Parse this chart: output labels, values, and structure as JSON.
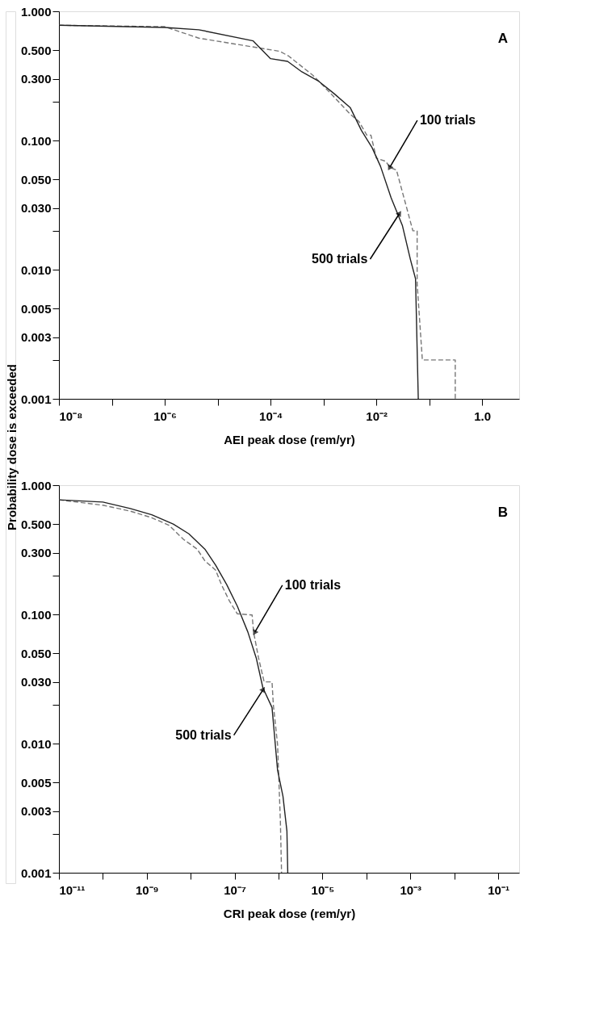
{
  "chart_data": [
    {
      "type": "line",
      "xlabel": "AEI peak dose (rem/yr)",
      "ylabel": "Probability dose is exceeded",
      "log": "xy",
      "marker": "none",
      "xlim": [
        1e-08,
        5
      ],
      "ylim": [
        0.001,
        1
      ],
      "xticks": [
        {
          "value": 1e-08,
          "label": "10⁻⁸"
        },
        {
          "value": 1e-07,
          "label": null
        },
        {
          "value": 1e-06,
          "label": "10⁻⁶"
        },
        {
          "value": 1e-05,
          "label": null
        },
        {
          "value": 0.0001,
          "label": "10⁻⁴"
        },
        {
          "value": 0.001,
          "label": null
        },
        {
          "value": 0.01,
          "label": "10⁻²"
        },
        {
          "value": 0.1,
          "label": null
        },
        {
          "value": 1,
          "label": "1.0"
        }
      ],
      "yticks": [
        {
          "value": 1,
          "label": "1.000"
        },
        {
          "value": 0.5,
          "label": "0.500"
        },
        {
          "value": 0.3,
          "label": "0.300"
        },
        {
          "value": 0.2,
          "label": null
        },
        {
          "value": 0.1,
          "label": "0.100"
        },
        {
          "value": 0.05,
          "label": "0.050"
        },
        {
          "value": 0.03,
          "label": "0.030"
        },
        {
          "value": 0.02,
          "label": null
        },
        {
          "value": 0.01,
          "label": "0.010"
        },
        {
          "value": 0.005,
          "label": "0.005"
        },
        {
          "value": 0.003,
          "label": "0.003"
        },
        {
          "value": 0.002,
          "label": null
        },
        {
          "value": 0.001,
          "label": "0.001"
        }
      ],
      "series": [
        {
          "color": "#777777",
          "line_style": "dashed",
          "x": [
            1e-08,
            1e-06,
            4.4e-06,
            0.00015,
            0.00022,
            0.00063,
            0.00126,
            0.0032,
            0.0047,
            0.0066,
            0.0079,
            0.01,
            0.015,
            0.018,
            0.024,
            0.049,
            0.059,
            0.059,
            0.074,
            0.31,
            0.31
          ],
          "values": [
            0.78,
            0.76,
            0.62,
            0.49,
            0.45,
            0.32,
            0.24,
            0.16,
            0.14,
            0.11,
            0.11,
            0.073,
            0.069,
            0.062,
            0.059,
            0.02,
            0.02,
            0.0078,
            0.002,
            0.002,
            0.001
          ]
        },
        {
          "color": "#222222",
          "line_style": "solid",
          "x": [
            1e-08,
            1e-06,
            4.4e-06,
            4.7e-05,
            0.0001,
            0.00021,
            0.00039,
            0.00079,
            0.0016,
            0.0032,
            0.0052,
            0.0083,
            0.012,
            0.019,
            0.031,
            0.044,
            0.055,
            0.062
          ],
          "values": [
            0.78,
            0.75,
            0.72,
            0.59,
            0.43,
            0.41,
            0.34,
            0.29,
            0.23,
            0.18,
            0.12,
            0.088,
            0.063,
            0.036,
            0.022,
            0.012,
            0.0085,
            0.001
          ]
        }
      ],
      "annotations": [
        "A",
        {
          "text": "100 trials",
          "x": 0.018,
          "y": 0.062
        },
        {
          "text": "500 trials",
          "x": 0.027,
          "y": 0.027
        }
      ]
    },
    {
      "type": "line",
      "xlabel": "CRI peak dose (rem/yr)",
      "log": "xy",
      "marker": "none",
      "xlim": [
        1e-11,
        0.3
      ],
      "ylim": [
        0.001,
        1
      ],
      "xticks": [
        {
          "value": 1e-11,
          "label": "10⁻¹¹"
        },
        {
          "value": 1e-10,
          "label": null
        },
        {
          "value": 1e-09,
          "label": "10⁻⁹"
        },
        {
          "value": 1e-08,
          "label": null
        },
        {
          "value": 1e-07,
          "label": "10⁻⁷"
        },
        {
          "value": 1e-06,
          "label": null
        },
        {
          "value": 1e-05,
          "label": "10⁻⁵"
        },
        {
          "value": 0.0001,
          "label": null
        },
        {
          "value": 0.001,
          "label": "10⁻³"
        },
        {
          "value": 0.01,
          "label": null
        },
        {
          "value": 0.1,
          "label": "10⁻¹"
        }
      ],
      "yticks": [
        {
          "value": 1,
          "label": "1.000"
        },
        {
          "value": 0.5,
          "label": "0.500"
        },
        {
          "value": 0.3,
          "label": "0.300"
        },
        {
          "value": 0.2,
          "label": null
        },
        {
          "value": 0.1,
          "label": "0.100"
        },
        {
          "value": 0.05,
          "label": "0.050"
        },
        {
          "value": 0.03,
          "label": "0.030"
        },
        {
          "value": 0.02,
          "label": null
        },
        {
          "value": 0.01,
          "label": "0.010"
        },
        {
          "value": 0.005,
          "label": "0.005"
        },
        {
          "value": 0.003,
          "label": "0.003"
        },
        {
          "value": 0.002,
          "label": null
        },
        {
          "value": 0.001,
          "label": "0.001"
        }
      ],
      "series": [
        {
          "color": "#777777",
          "line_style": "dashed",
          "x": [
            1e-11,
            1e-10,
            4.2e-10,
            1.3e-09,
            3.2e-09,
            6.9e-09,
            1.4e-08,
            2.1e-08,
            3.7e-08,
            5e-08,
            7.6e-08,
            1.15e-07,
            2.5e-07,
            2.7e-07,
            3.5e-07,
            4.7e-07,
            7.1e-07,
            7.6e-07,
            9.5e-07,
            1.1e-06,
            1.17e-06
          ],
          "values": [
            0.77,
            0.7,
            0.63,
            0.56,
            0.49,
            0.38,
            0.32,
            0.26,
            0.22,
            0.17,
            0.127,
            0.101,
            0.099,
            0.073,
            0.046,
            0.03,
            0.03,
            0.02,
            0.0098,
            0.0025,
            0.001
          ]
        },
        {
          "color": "#222222",
          "line_style": "solid",
          "x": [
            1e-11,
            1e-10,
            4.2e-10,
            1.3e-09,
            4e-09,
            9.1e-09,
            2.1e-08,
            3.7e-08,
            6.6e-08,
            1.15e-07,
            2e-07,
            3.1e-07,
            4.4e-07,
            7.1e-07,
            9.5e-07,
            1.26e-06,
            1.55e-06,
            1.62e-06
          ],
          "values": [
            0.77,
            0.74,
            0.66,
            0.59,
            0.5,
            0.42,
            0.32,
            0.24,
            0.17,
            0.116,
            0.073,
            0.046,
            0.027,
            0.019,
            0.0062,
            0.0039,
            0.0021,
            0.001
          ]
        }
      ],
      "annotations": [
        "B",
        {
          "text": "100 trials",
          "x": 2.9e-07,
          "y": 0.073
        },
        {
          "text": "500 trials",
          "x": 4.4e-07,
          "y": 0.026
        }
      ]
    }
  ]
}
